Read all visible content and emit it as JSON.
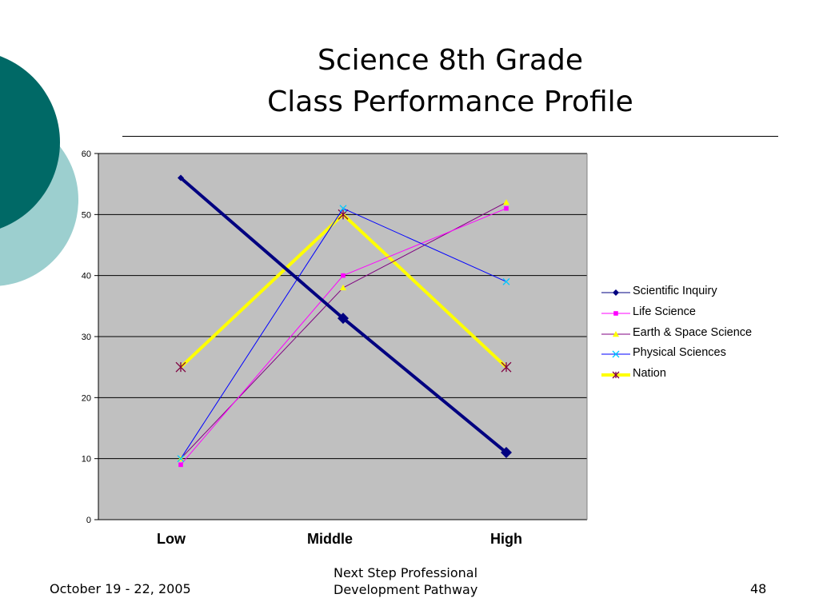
{
  "title": {
    "line1": "Science  8th Grade",
    "line2": "Class Performance Profile"
  },
  "footer": {
    "date": "October 19 - 22, 2005",
    "center_line1": "Next Step Professional",
    "center_line2": "Development Pathway",
    "page_number": "48"
  },
  "colors": {
    "teal_dark": "#006966",
    "teal_light": "#9ccfcf",
    "plot_bg": "#c0c0c0"
  },
  "chart_data": {
    "type": "line",
    "categories": [
      "Low",
      "Middle",
      "High"
    ],
    "ylim": [
      0,
      60
    ],
    "yticks": [
      0,
      10,
      20,
      30,
      40,
      50,
      60
    ],
    "grid": true,
    "legend_position": "right",
    "series": [
      {
        "name": "Scientific Inquiry",
        "values": [
          56,
          33,
          11
        ],
        "color": "#000080",
        "marker": "diamond"
      },
      {
        "name": "Life Science",
        "values": [
          9,
          40,
          51
        ],
        "color": "#ff00ff",
        "marker": "square"
      },
      {
        "name": "Earth & Space Science",
        "values": [
          10,
          38,
          52
        ],
        "color": "#800080",
        "marker_color": "#ffff00",
        "marker": "triangle"
      },
      {
        "name": "Physical Sciences",
        "values": [
          10,
          51,
          39
        ],
        "color": "#0000ff",
        "marker_color": "#00c8ff",
        "marker": "x"
      },
      {
        "name": "Nation",
        "values": [
          25,
          50,
          25
        ],
        "color": "#ffff00",
        "marker_color": "#800040",
        "marker": "star"
      }
    ]
  }
}
